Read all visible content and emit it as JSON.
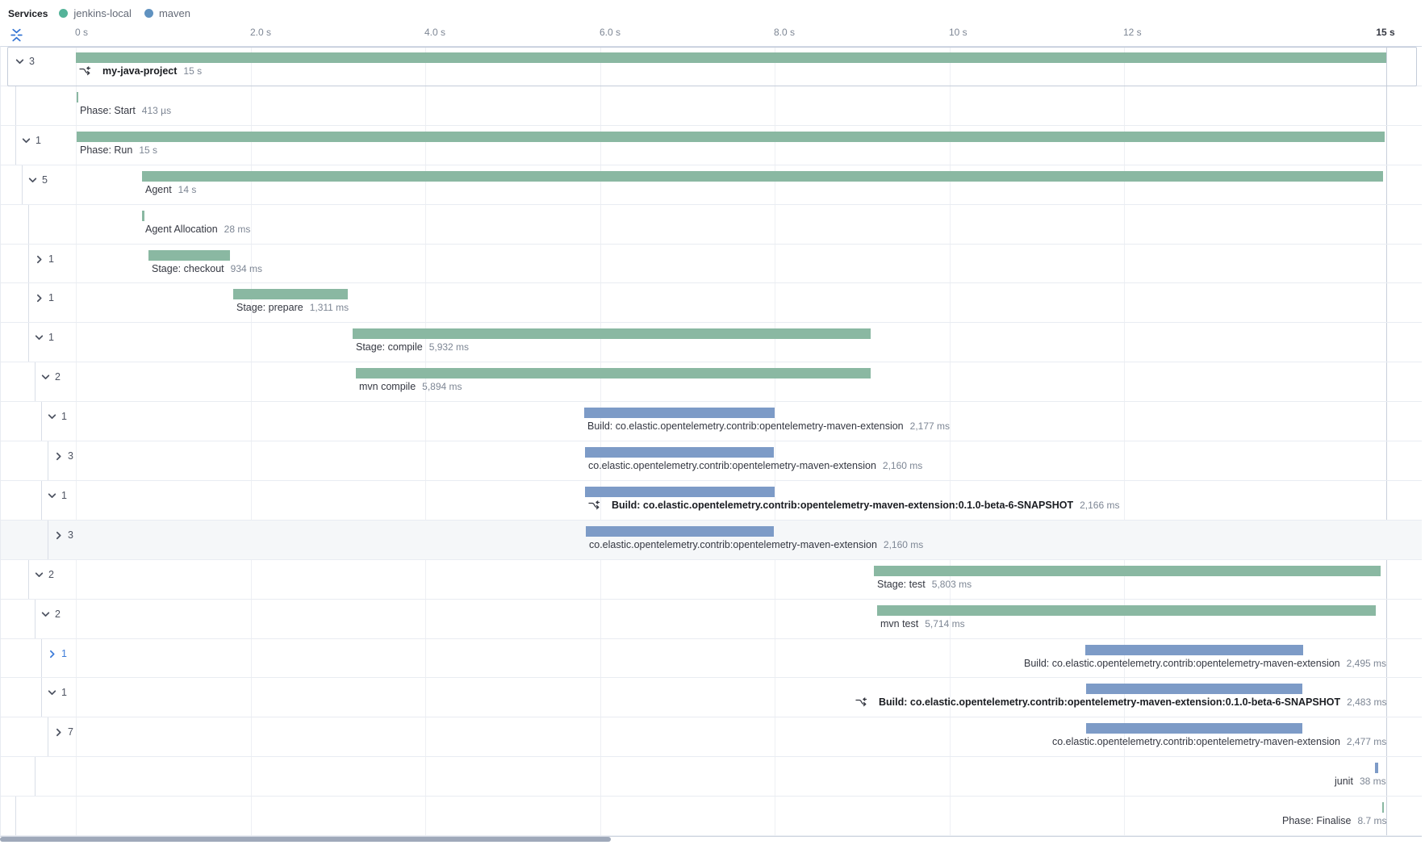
{
  "legend": {
    "title": "Services",
    "services": [
      {
        "name": "jenkins-local",
        "color": "#54b399"
      },
      {
        "name": "maven",
        "color": "#6092c0"
      }
    ]
  },
  "axis": {
    "total_label": "15 s",
    "ticks": [
      {
        "label": "0 s",
        "t": 0
      },
      {
        "label": "2.0 s",
        "t": 2
      },
      {
        "label": "4.0 s",
        "t": 4
      },
      {
        "label": "6.0 s",
        "t": 6
      },
      {
        "label": "8.0 s",
        "t": 8
      },
      {
        "label": "10 s",
        "t": 10
      },
      {
        "label": "12 s",
        "t": 12
      },
      {
        "label": "15 s",
        "t": 15,
        "emphasis": true
      }
    ]
  },
  "colors": {
    "bar_jenkins": "#8ab8a2",
    "bar_maven": "#7d9bc7",
    "toggle_accent": "#3d7cd9"
  },
  "scrollbar": {
    "visible": true
  },
  "rows": [
    {
      "name": "my-java-project",
      "duration": "15 s",
      "service": "jenkins-local",
      "level": 0,
      "start_s": 0,
      "dur_s": 15.0,
      "toggle": {
        "state": "expanded",
        "count": "3"
      },
      "bold": true,
      "icon": true,
      "selected": true
    },
    {
      "name": "Phase: Start",
      "duration": "413 µs",
      "service": "jenkins-local",
      "level": 1,
      "start_s": 0.005,
      "dur_s": 0.000413,
      "toggle": null
    },
    {
      "name": "Phase: Run",
      "duration": "15 s",
      "service": "jenkins-local",
      "level": 1,
      "start_s": 0.01,
      "dur_s": 14.97,
      "toggle": {
        "state": "expanded",
        "count": "1"
      }
    },
    {
      "name": "Agent",
      "duration": "14 s",
      "service": "jenkins-local",
      "level": 2,
      "start_s": 0.76,
      "dur_s": 14.2,
      "toggle": {
        "state": "expanded",
        "count": "5"
      }
    },
    {
      "name": "Agent Allocation",
      "duration": "28 ms",
      "service": "jenkins-local",
      "level": 3,
      "start_s": 0.757,
      "dur_s": 0.028,
      "toggle": null
    },
    {
      "name": "Stage: checkout",
      "duration": "934 ms",
      "service": "jenkins-local",
      "level": 3,
      "start_s": 0.83,
      "dur_s": 0.934,
      "toggle": {
        "state": "collapsed",
        "count": "1"
      }
    },
    {
      "name": "Stage: prepare",
      "duration": "1,311 ms",
      "service": "jenkins-local",
      "level": 3,
      "start_s": 1.8,
      "dur_s": 1.311,
      "toggle": {
        "state": "collapsed",
        "count": "1"
      }
    },
    {
      "name": "Stage: compile",
      "duration": "5,932 ms",
      "service": "jenkins-local",
      "level": 3,
      "start_s": 3.17,
      "dur_s": 5.932,
      "toggle": {
        "state": "expanded",
        "count": "1"
      }
    },
    {
      "name": "mvn compile",
      "duration": "5,894 ms",
      "service": "jenkins-local",
      "level": 4,
      "start_s": 3.205,
      "dur_s": 5.894,
      "toggle": {
        "state": "expanded",
        "count": "2"
      }
    },
    {
      "name": "Build: co.elastic.opentelemetry.contrib:opentelemetry-maven-extension",
      "duration": "2,177 ms",
      "service": "maven",
      "level": 5,
      "start_s": 5.82,
      "dur_s": 2.177,
      "toggle": {
        "state": "expanded",
        "count": "1"
      }
    },
    {
      "name": "co.elastic.opentelemetry.contrib:opentelemetry-maven-extension",
      "duration": "2,160 ms",
      "service": "maven",
      "level": 6,
      "start_s": 5.827,
      "dur_s": 2.16,
      "toggle": {
        "state": "collapsed",
        "count": "3"
      }
    },
    {
      "name": "Build: co.elastic.opentelemetry.contrib:opentelemetry-maven-extension:0.1.0-beta-6-SNAPSHOT",
      "duration": "2,166 ms",
      "service": "maven",
      "level": 5,
      "start_s": 5.83,
      "dur_s": 2.166,
      "toggle": {
        "state": "expanded",
        "count": "1"
      },
      "bold": true,
      "icon": true
    },
    {
      "name": "co.elastic.opentelemetry.contrib:opentelemetry-maven-extension",
      "duration": "2,160 ms",
      "service": "maven",
      "level": 6,
      "start_s": 5.833,
      "dur_s": 2.16,
      "toggle": {
        "state": "collapsed",
        "count": "3"
      },
      "highlighted": true
    },
    {
      "name": "Stage: test",
      "duration": "5,803 ms",
      "service": "jenkins-local",
      "level": 3,
      "start_s": 9.13,
      "dur_s": 5.803,
      "toggle": {
        "state": "expanded",
        "count": "2"
      }
    },
    {
      "name": "mvn test",
      "duration": "5,714 ms",
      "service": "jenkins-local",
      "level": 4,
      "start_s": 9.17,
      "dur_s": 5.714,
      "toggle": {
        "state": "expanded",
        "count": "2"
      }
    },
    {
      "name": "Build: co.elastic.opentelemetry.contrib:opentelemetry-maven-extension",
      "duration": "2,495 ms",
      "service": "maven",
      "level": 5,
      "start_s": 11.55,
      "dur_s": 2.495,
      "toggle": {
        "state": "collapsed",
        "count": "1",
        "accent": true
      }
    },
    {
      "name": "Build: co.elastic.opentelemetry.contrib:opentelemetry-maven-extension:0.1.0-beta-6-SNAPSHOT",
      "duration": "2,483 ms",
      "service": "maven",
      "level": 5,
      "start_s": 11.56,
      "dur_s": 2.483,
      "toggle": {
        "state": "expanded",
        "count": "1"
      },
      "bold": true,
      "icon": true
    },
    {
      "name": "co.elastic.opentelemetry.contrib:opentelemetry-maven-extension",
      "duration": "2,477 ms",
      "service": "maven",
      "level": 6,
      "start_s": 11.565,
      "dur_s": 2.477,
      "toggle": {
        "state": "collapsed",
        "count": "7"
      }
    },
    {
      "name": "junit",
      "duration": "38 ms",
      "service": "maven",
      "level": 4,
      "start_s": 14.87,
      "dur_s": 0.038,
      "toggle": null
    },
    {
      "name": "Phase: Finalise",
      "duration": "8.7 ms",
      "service": "jenkins-local",
      "level": 1,
      "start_s": 14.95,
      "dur_s": 0.0087,
      "toggle": null
    }
  ]
}
